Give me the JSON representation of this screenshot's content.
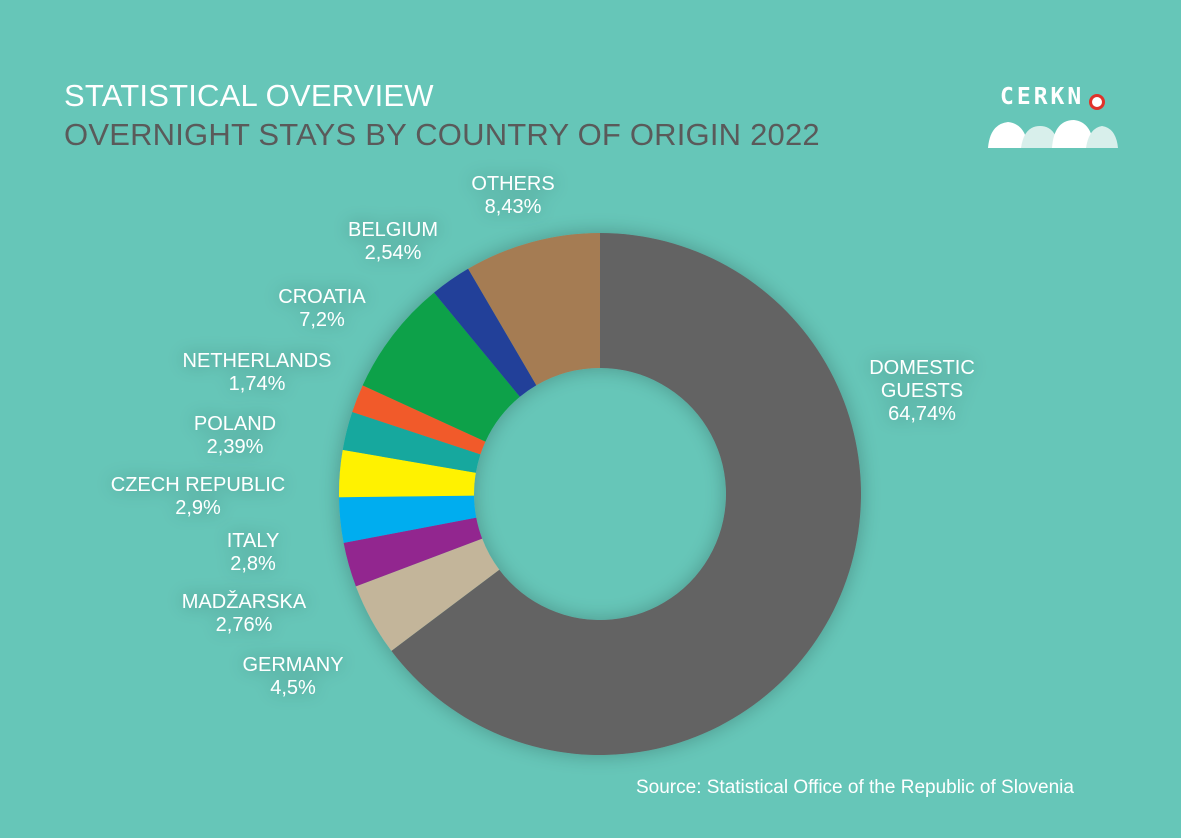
{
  "header": {
    "title": "STATISTICAL OVERVIEW",
    "subtitle": "OVERNIGHT STAYS BY COUNTRY OF ORIGIN 2022"
  },
  "logo": {
    "text": "CERKN"
  },
  "source": "Source: Statistical Office of the Republic of Slovenia",
  "chart_data": {
    "type": "pie",
    "donut": true,
    "title": "OVERNIGHT STAYS BY COUNTRY OF ORIGIN 2022",
    "slices": [
      {
        "label": [
          "DOMESTIC",
          "GUESTS"
        ],
        "value_label": "64,74%",
        "value": 64.74,
        "color": "#636363"
      },
      {
        "label": [
          "GERMANY"
        ],
        "value_label": "4,5%",
        "value": 4.5,
        "color": "#c3b59a"
      },
      {
        "label": [
          "MADŽARSKA"
        ],
        "value_label": "2,76%",
        "value": 2.76,
        "color": "#92278f"
      },
      {
        "label": [
          "ITALY"
        ],
        "value_label": "2,8%",
        "value": 2.8,
        "color": "#00adef"
      },
      {
        "label": [
          "CZECH REPUBLIC"
        ],
        "value_label": "2,9%",
        "value": 2.9,
        "color": "#fff200"
      },
      {
        "label": [
          "POLAND"
        ],
        "value_label": "2,39%",
        "value": 2.39,
        "color": "#13a89e"
      },
      {
        "label": [
          "NETHERLANDS"
        ],
        "value_label": "1,74%",
        "value": 1.74,
        "color": "#f15a29"
      },
      {
        "label": [
          "CROATIA"
        ],
        "value_label": "7,2%",
        "value": 7.2,
        "color": "#0aa14a"
      },
      {
        "label": [
          "BELGIUM"
        ],
        "value_label": "2,54%",
        "value": 2.54,
        "color": "#223f99"
      },
      {
        "label": [
          "OTHERS"
        ],
        "value_label": "8,43%",
        "value": 8.43,
        "color": "#a57b52"
      }
    ]
  }
}
